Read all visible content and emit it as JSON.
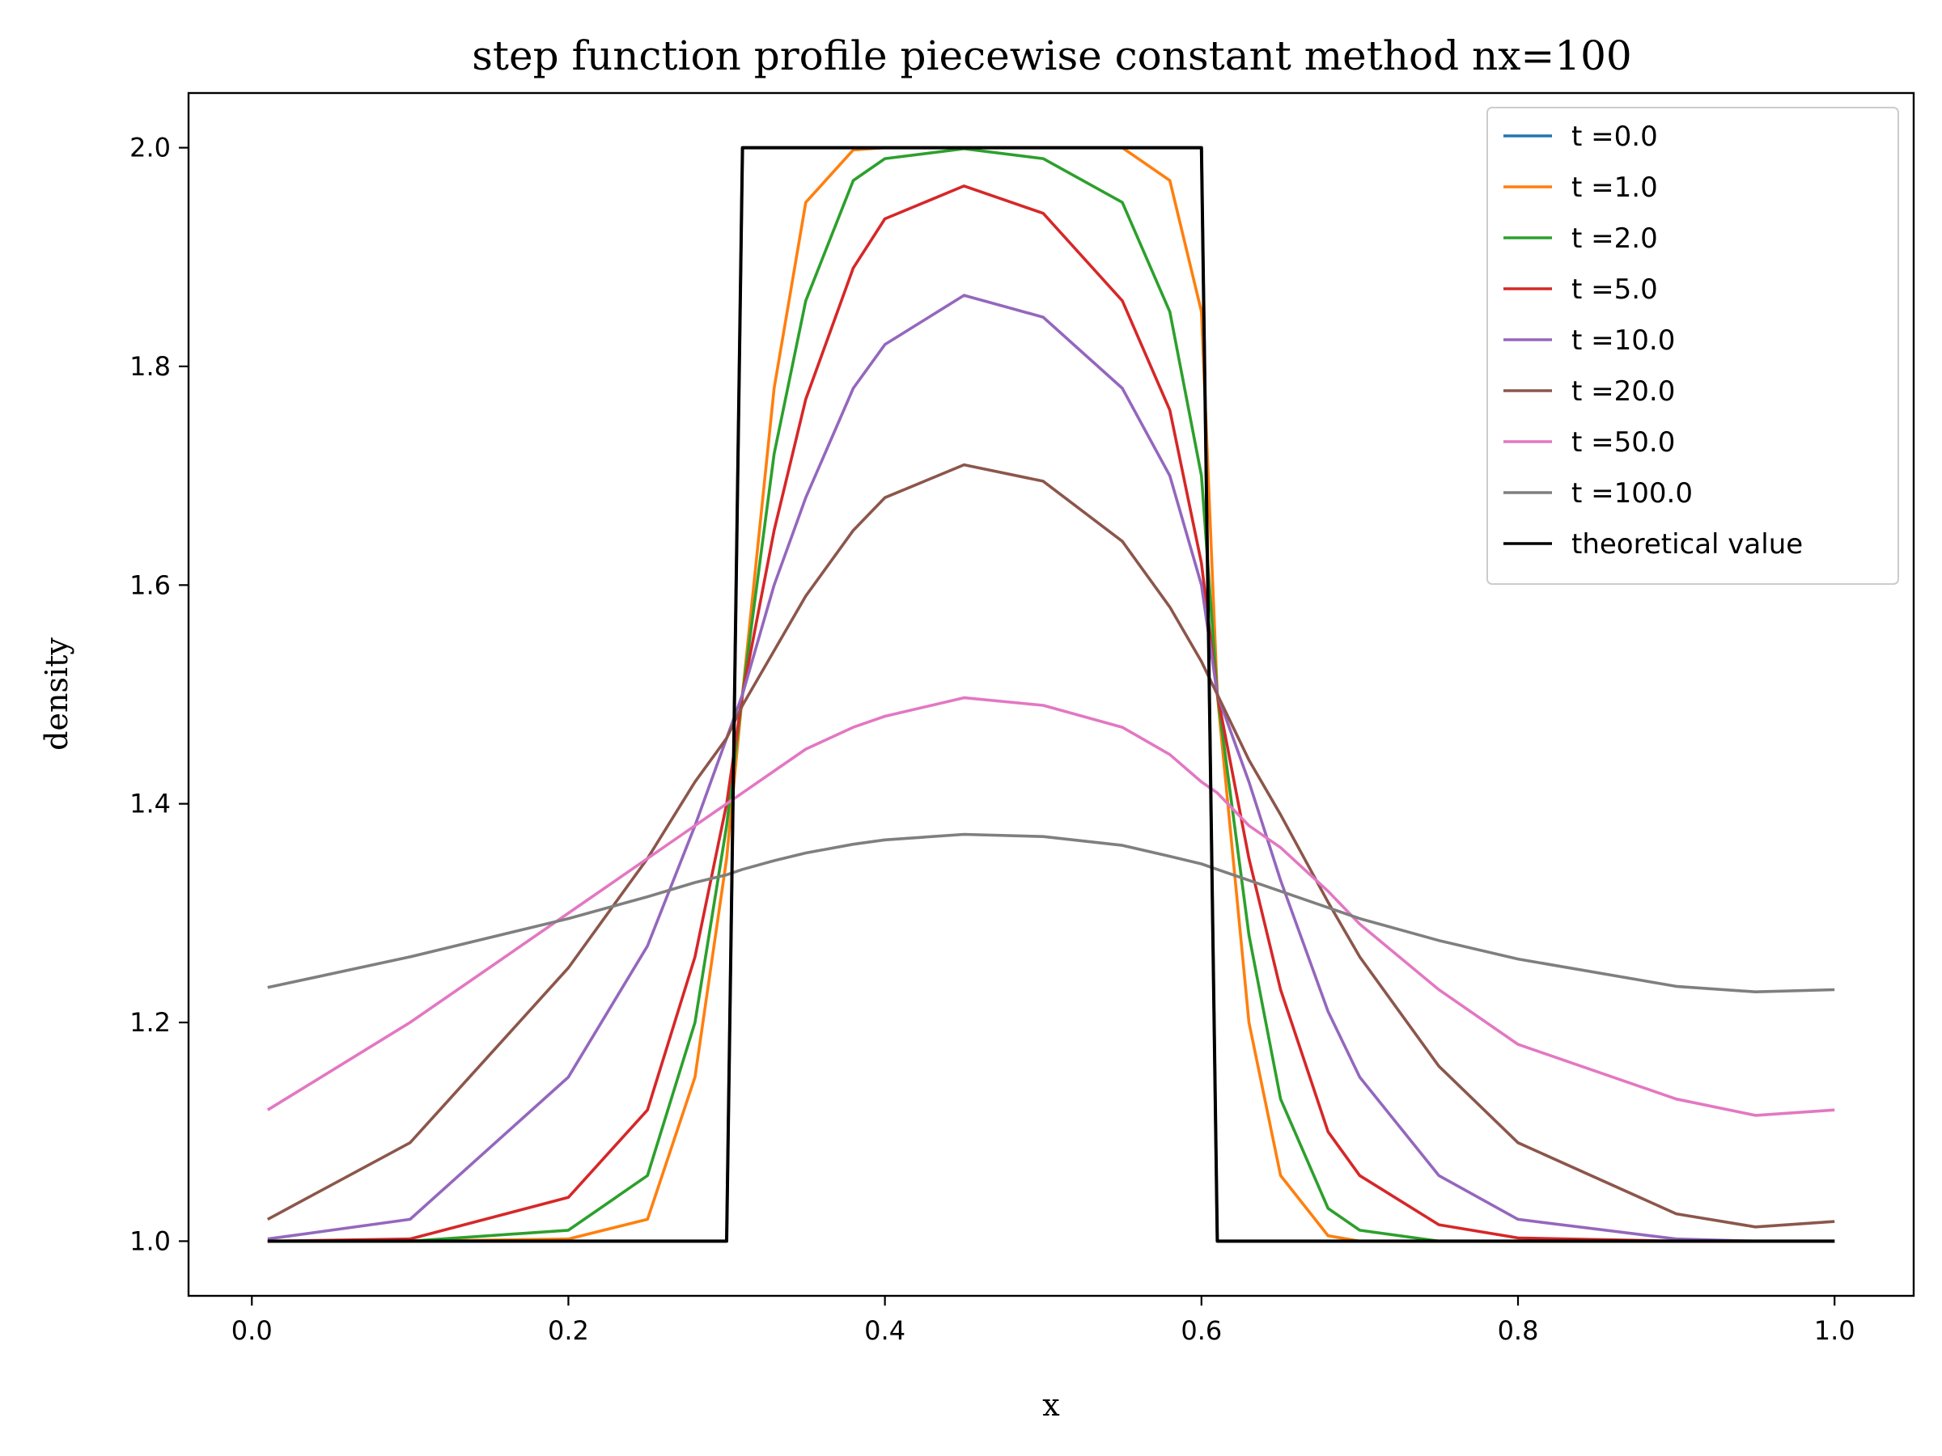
{
  "chart_data": {
    "type": "line",
    "title": "step function profile piecewise constant method nx=100",
    "xlabel": "x",
    "ylabel": "density",
    "xlim": [
      -0.04,
      1.05
    ],
    "ylim": [
      0.95,
      2.05
    ],
    "xticks": [
      0.0,
      0.2,
      0.4,
      0.6,
      0.8,
      1.0
    ],
    "xtick_labels": [
      "0.0",
      "0.2",
      "0.4",
      "0.6",
      "0.8",
      "1.0"
    ],
    "yticks": [
      1.0,
      1.2,
      1.4,
      1.6,
      1.8,
      2.0
    ],
    "ytick_labels": [
      "1.0",
      "1.2",
      "1.4",
      "1.6",
      "1.8",
      "2.0"
    ],
    "grid": false,
    "legend_position": "top-right",
    "x": [
      0.01,
      0.1,
      0.2,
      0.25,
      0.28,
      0.3,
      0.31,
      0.33,
      0.35,
      0.38,
      0.4,
      0.45,
      0.5,
      0.55,
      0.58,
      0.6,
      0.61,
      0.63,
      0.65,
      0.68,
      0.7,
      0.75,
      0.8,
      0.9,
      0.95,
      1.0
    ],
    "series": [
      {
        "name": "t =0.0",
        "color": "#1f77b4",
        "values": [
          1.0,
          1.0,
          1.0,
          1.0,
          1.0,
          1.0,
          2.0,
          2.0,
          2.0,
          2.0,
          2.0,
          2.0,
          2.0,
          2.0,
          2.0,
          2.0,
          1.0,
          1.0,
          1.0,
          1.0,
          1.0,
          1.0,
          1.0,
          1.0,
          1.0,
          1.0
        ]
      },
      {
        "name": "t =1.0",
        "color": "#ff7f0e",
        "values": [
          1.0,
          1.0,
          1.002,
          1.02,
          1.15,
          1.35,
          1.5,
          1.78,
          1.95,
          1.998,
          2.0,
          2.0,
          2.0,
          2.0,
          1.97,
          1.85,
          1.5,
          1.2,
          1.06,
          1.005,
          1.0,
          1.0,
          1.0,
          1.0,
          1.0,
          1.0
        ]
      },
      {
        "name": "t =2.0",
        "color": "#2ca02c",
        "values": [
          1.0,
          1.0,
          1.01,
          1.06,
          1.2,
          1.38,
          1.5,
          1.72,
          1.86,
          1.97,
          1.99,
          1.999,
          1.99,
          1.95,
          1.85,
          1.7,
          1.5,
          1.28,
          1.13,
          1.03,
          1.01,
          1.0,
          1.0,
          1.0,
          1.0,
          1.0
        ]
      },
      {
        "name": "t =5.0",
        "color": "#d62728",
        "values": [
          1.0,
          1.002,
          1.04,
          1.12,
          1.26,
          1.4,
          1.5,
          1.65,
          1.77,
          1.89,
          1.935,
          1.965,
          1.94,
          1.86,
          1.76,
          1.62,
          1.5,
          1.35,
          1.23,
          1.1,
          1.06,
          1.015,
          1.003,
          1.0,
          1.0,
          1.0
        ]
      },
      {
        "name": "t =10.0",
        "color": "#9467bd",
        "values": [
          1.002,
          1.02,
          1.15,
          1.27,
          1.38,
          1.46,
          1.5,
          1.6,
          1.68,
          1.78,
          1.82,
          1.865,
          1.845,
          1.78,
          1.7,
          1.6,
          1.5,
          1.42,
          1.33,
          1.21,
          1.15,
          1.06,
          1.02,
          1.002,
          1.0,
          1.0
        ]
      },
      {
        "name": "t =20.0",
        "color": "#8c564b",
        "values": [
          1.02,
          1.09,
          1.25,
          1.35,
          1.42,
          1.46,
          1.49,
          1.54,
          1.59,
          1.65,
          1.68,
          1.71,
          1.695,
          1.64,
          1.58,
          1.53,
          1.5,
          1.44,
          1.39,
          1.31,
          1.26,
          1.16,
          1.09,
          1.025,
          1.013,
          1.018
        ]
      },
      {
        "name": "t =50.0",
        "color": "#e377c2",
        "values": [
          1.12,
          1.2,
          1.3,
          1.35,
          1.38,
          1.4,
          1.41,
          1.43,
          1.45,
          1.47,
          1.48,
          1.497,
          1.49,
          1.47,
          1.445,
          1.42,
          1.41,
          1.38,
          1.36,
          1.32,
          1.29,
          1.23,
          1.18,
          1.13,
          1.115,
          1.12
        ]
      },
      {
        "name": "t =100.0",
        "color": "#7f7f7f",
        "values": [
          1.232,
          1.26,
          1.295,
          1.315,
          1.328,
          1.335,
          1.34,
          1.348,
          1.355,
          1.363,
          1.367,
          1.372,
          1.37,
          1.362,
          1.352,
          1.345,
          1.34,
          1.33,
          1.32,
          1.305,
          1.295,
          1.275,
          1.258,
          1.233,
          1.228,
          1.23
        ]
      },
      {
        "name": "theoretical value",
        "color": "#000000",
        "values": [
          1.0,
          1.0,
          1.0,
          1.0,
          1.0,
          1.0,
          2.0,
          2.0,
          2.0,
          2.0,
          2.0,
          2.0,
          2.0,
          2.0,
          2.0,
          2.0,
          1.0,
          1.0,
          1.0,
          1.0,
          1.0,
          1.0,
          1.0,
          1.0,
          1.0,
          1.0
        ]
      }
    ]
  }
}
